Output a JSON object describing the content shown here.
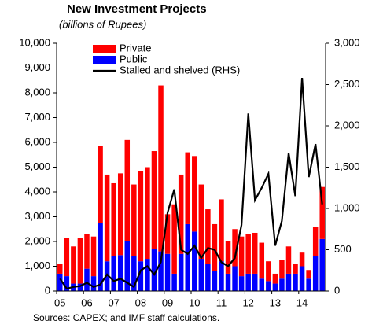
{
  "chart_data": {
    "type": "bar",
    "stacked": true,
    "title": "New Investment Projects",
    "subtitle": "(billions of Rupees)",
    "note": "Sources: CAPEX; and IMF staff calculations.",
    "categories": [
      "05",
      null,
      null,
      null,
      "06",
      null,
      null,
      null,
      "07",
      null,
      null,
      null,
      "08",
      null,
      null,
      null,
      "09",
      null,
      null,
      null,
      "10",
      null,
      null,
      null,
      "11",
      null,
      null,
      null,
      "12",
      null,
      null,
      null,
      "13",
      null,
      null,
      null,
      "14",
      null,
      null,
      null
    ],
    "series": [
      {
        "name": "Private",
        "color": "#ff0000",
        "type": "bar",
        "values": [
          400,
          1550,
          1500,
          1850,
          1400,
          1600,
          3100,
          3500,
          2950,
          3300,
          4100,
          2900,
          3650,
          3700,
          3950,
          6700,
          1600,
          2800,
          3200,
          2900,
          3050,
          3000,
          2200,
          1900,
          2500,
          1300,
          1500,
          1600,
          1600,
          1650,
          1450,
          800,
          400,
          750,
          1100,
          400,
          550,
          350,
          1200,
          2100
        ]
      },
      {
        "name": "Public",
        "color": "#0000ff",
        "type": "bar",
        "values": [
          700,
          600,
          300,
          300,
          900,
          600,
          2750,
          1200,
          1400,
          1450,
          2000,
          1400,
          1200,
          1300,
          1700,
          1600,
          1500,
          700,
          1500,
          2700,
          2400,
          1300,
          1100,
          800,
          1200,
          700,
          1000,
          600,
          700,
          700,
          500,
          400,
          300,
          500,
          700,
          700,
          1000,
          500,
          1400,
          2100
        ]
      },
      {
        "name": "Stalled and shelved (RHS)",
        "color": "#000000",
        "type": "line",
        "axis": "y2",
        "values": [
          150,
          30,
          50,
          60,
          100,
          50,
          80,
          200,
          120,
          150,
          100,
          50,
          250,
          300,
          200,
          350,
          950,
          1230,
          500,
          450,
          550,
          400,
          520,
          500,
          350,
          300,
          400,
          800,
          2150,
          1100,
          1250,
          1420,
          550,
          850,
          1670,
          1150,
          2580,
          1380,
          1780,
          1050
        ]
      }
    ],
    "ylim": [
      0,
      10000
    ],
    "yticks": [
      0,
      {
        "value": 1000,
        "label": "1,000"
      },
      {
        "value": 2000,
        "label": "2,000"
      },
      {
        "value": 3000,
        "label": "3,000"
      },
      {
        "value": 4000,
        "label": "4,000"
      },
      {
        "value": 5000,
        "label": "5,000"
      },
      {
        "value": 6000,
        "label": "6,000"
      },
      {
        "value": 7000,
        "label": "7,000"
      },
      {
        "value": 8000,
        "label": "8,000"
      },
      {
        "value": 9000,
        "label": "9,000"
      },
      {
        "value": 10000,
        "label": "10,000"
      }
    ],
    "y2lim": [
      0,
      3000
    ],
    "y2ticks": [
      0,
      500,
      {
        "value": 1000,
        "label": "1,000"
      },
      {
        "value": 1500,
        "label": "1,500"
      },
      {
        "value": 2000,
        "label": "2,000"
      },
      {
        "value": 2500,
        "label": "2,500"
      },
      {
        "value": 3000,
        "label": "3,000"
      }
    ],
    "grid": false,
    "legend": "top-left"
  }
}
